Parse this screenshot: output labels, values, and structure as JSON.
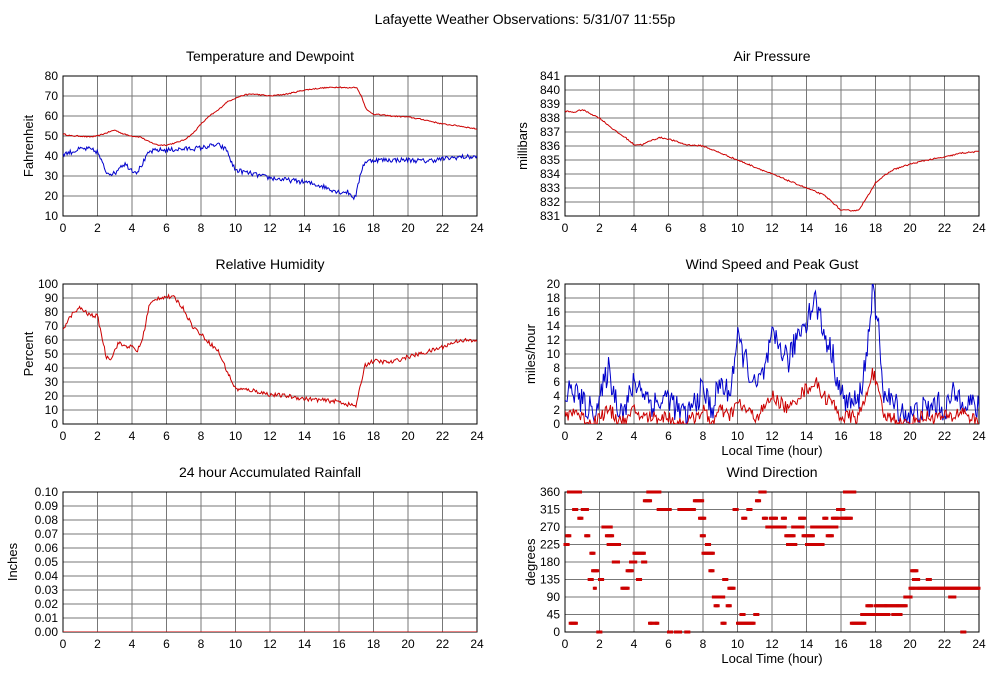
{
  "page_title": "Lafayette Weather Observations: 5/31/07 11:55p",
  "chart_data": [
    {
      "id": "temp",
      "type": "line",
      "title": "Temperature and Dewpoint",
      "ylabel": "Fahrenheit",
      "xlabel": "",
      "ylim": [
        10,
        80
      ],
      "yticks": [
        10,
        20,
        30,
        40,
        50,
        60,
        70,
        80
      ],
      "xlim": [
        0,
        24
      ],
      "xticks": [
        0,
        2,
        4,
        6,
        8,
        10,
        12,
        14,
        16,
        18,
        20,
        22,
        24
      ],
      "grid": true,
      "series": [
        {
          "color": "#cc0000",
          "jitter": 0.3,
          "x": [
            0,
            0.5,
            1,
            1.5,
            2,
            2.5,
            3,
            3.5,
            4,
            4.5,
            5,
            5.5,
            6,
            6.5,
            7,
            7.5,
            8,
            8.5,
            9,
            9.5,
            10,
            10.5,
            11,
            12,
            13,
            14,
            15,
            16,
            16.5,
            17,
            17.3,
            17.6,
            18,
            19,
            20,
            21,
            22,
            23,
            24
          ],
          "y": [
            51,
            50,
            50,
            49.5,
            50,
            51.5,
            53,
            51,
            50,
            49.5,
            47,
            45.5,
            45.5,
            46.5,
            48,
            51,
            56,
            60,
            63,
            67,
            69,
            70.5,
            71,
            70,
            71,
            73,
            74,
            74.5,
            74,
            74.5,
            70,
            63,
            61,
            60,
            59.5,
            58,
            56,
            55,
            53.5
          ]
        },
        {
          "color": "#0000cc",
          "jitter": 1.2,
          "x": [
            0,
            0.5,
            1,
            1.5,
            2,
            2.3,
            2.5,
            3,
            3.3,
            3.6,
            4,
            4.3,
            4.6,
            5,
            5.5,
            6,
            7,
            8,
            8.5,
            9,
            9.5,
            9.8,
            10,
            11,
            12,
            13,
            14,
            15,
            16,
            16.5,
            16.9,
            17,
            17.3,
            17.5,
            18,
            19,
            20,
            21,
            22,
            23,
            24
          ],
          "y": [
            41,
            42,
            43.5,
            43.5,
            42,
            36,
            32,
            31,
            35,
            36,
            33,
            32,
            36,
            42,
            43,
            43,
            43.5,
            44,
            45,
            45.5,
            43,
            36,
            33,
            31,
            29,
            28,
            27,
            25,
            22,
            22,
            19,
            21,
            33,
            37,
            38,
            38,
            38,
            37.5,
            38.5,
            39.5,
            39.5
          ]
        }
      ]
    },
    {
      "id": "pressure",
      "type": "line",
      "title": "Air Pressure",
      "ylabel": "millibars",
      "xlabel": "",
      "ylim": [
        831,
        841
      ],
      "yticks": [
        831,
        832,
        833,
        834,
        835,
        836,
        837,
        838,
        839,
        840,
        841
      ],
      "xlim": [
        0,
        24
      ],
      "xticks": [
        0,
        2,
        4,
        6,
        8,
        10,
        12,
        14,
        16,
        18,
        20,
        22,
        24
      ],
      "grid": true,
      "series": [
        {
          "color": "#cc0000",
          "jitter": 0.05,
          "x": [
            0,
            0.5,
            1,
            1.5,
            2,
            2.5,
            3,
            3.5,
            4,
            4.5,
            5,
            5.5,
            6,
            7,
            8,
            9,
            10,
            11,
            12,
            13,
            14,
            15,
            15.5,
            16,
            17,
            17.5,
            18,
            19,
            20,
            21,
            22,
            23,
            24
          ],
          "y": [
            838.5,
            838.4,
            838.6,
            838.3,
            838.0,
            837.5,
            837.0,
            836.6,
            836.1,
            836.1,
            836.4,
            836.6,
            836.5,
            836.1,
            836.0,
            835.5,
            835.0,
            834.5,
            834.0,
            833.5,
            833.0,
            832.5,
            832.0,
            831.4,
            831.4,
            832.3,
            833.4,
            834.3,
            834.7,
            835.0,
            835.2,
            835.5,
            835.6
          ]
        }
      ]
    },
    {
      "id": "humidity",
      "type": "line",
      "title": "Relative Humidity",
      "ylabel": "Percent",
      "xlabel": "",
      "ylim": [
        0,
        100
      ],
      "yticks": [
        0,
        10,
        20,
        30,
        40,
        50,
        60,
        70,
        80,
        90,
        100
      ],
      "xlim": [
        0,
        24
      ],
      "xticks": [
        0,
        2,
        4,
        6,
        8,
        10,
        12,
        14,
        16,
        18,
        20,
        22,
        24
      ],
      "grid": true,
      "series": [
        {
          "color": "#cc0000",
          "jitter": 1.5,
          "x": [
            0,
            0.5,
            1,
            1.5,
            2,
            2.3,
            2.5,
            2.8,
            3.2,
            3.5,
            4,
            4.3,
            4.6,
            5,
            5.5,
            6,
            6.5,
            7,
            7.5,
            8,
            8.5,
            9,
            9.5,
            10,
            11,
            12,
            13,
            14,
            15,
            16,
            16.5,
            17,
            17.5,
            18,
            19,
            20,
            21,
            22,
            23,
            24
          ],
          "y": [
            68,
            78,
            83,
            78,
            77,
            60,
            48,
            47,
            58,
            56,
            55,
            52,
            60,
            85,
            90,
            91,
            90,
            82,
            70,
            64,
            58,
            52,
            38,
            25,
            24,
            21,
            20,
            18,
            17,
            16,
            14,
            13,
            42,
            45,
            44,
            48,
            51,
            55,
            60,
            59
          ]
        }
      ]
    },
    {
      "id": "wind",
      "type": "line",
      "title": "Wind Speed and Peak Gust",
      "ylabel": "miles/hour",
      "xlabel": "Local Time (hour)",
      "ylim": [
        0,
        20
      ],
      "yticks": [
        0,
        2,
        4,
        6,
        8,
        10,
        12,
        14,
        16,
        18,
        20
      ],
      "xlim": [
        0,
        24
      ],
      "xticks": [
        0,
        2,
        4,
        6,
        8,
        10,
        12,
        14,
        16,
        18,
        20,
        22,
        24
      ],
      "grid": true,
      "series": [
        {
          "color": "#0000cc",
          "jitter": 2.0,
          "x": [
            0,
            0.5,
            1,
            1.5,
            2,
            2.5,
            3,
            3.5,
            4,
            4.5,
            5,
            5.5,
            6,
            6.5,
            7,
            7.5,
            8,
            8.5,
            9,
            9.5,
            10,
            10.5,
            11,
            11.5,
            12,
            12.5,
            13,
            13.5,
            14,
            14.5,
            15,
            15.5,
            16,
            16.5,
            17,
            17.5,
            17.8,
            18.2,
            18.5,
            19,
            19.5,
            20,
            20.5,
            21,
            21.5,
            22,
            22.5,
            23,
            23.5,
            24
          ],
          "y": [
            4,
            5,
            3,
            2,
            3,
            8,
            3,
            2,
            6,
            5,
            3,
            3,
            4,
            2,
            1,
            3,
            5,
            2,
            6,
            4,
            12,
            9,
            5,
            7,
            12,
            11,
            9,
            13,
            15,
            18,
            13,
            10,
            4,
            3,
            3,
            10,
            19,
            13,
            4,
            3,
            2,
            1,
            2,
            2,
            3,
            2,
            4,
            4,
            3,
            2
          ]
        },
        {
          "color": "#cc0000",
          "jitter": 1.0,
          "x": [
            0,
            0.5,
            1,
            1.5,
            2,
            2.5,
            3,
            3.5,
            4,
            4.5,
            5,
            5.5,
            6,
            6.5,
            7,
            7.5,
            8,
            8.5,
            9,
            9.5,
            10,
            10.5,
            11,
            11.5,
            12,
            12.5,
            13,
            13.5,
            14,
            14.5,
            15,
            15.5,
            16,
            16.5,
            17,
            17.5,
            17.8,
            18.2,
            18.5,
            19,
            19.5,
            20,
            20.5,
            21,
            21.5,
            22,
            22.5,
            23,
            23.5,
            24
          ],
          "y": [
            1,
            2,
            1,
            0,
            1,
            2,
            1,
            0,
            2,
            1,
            1,
            1,
            1,
            0,
            0,
            1,
            2,
            0,
            2,
            1,
            3,
            2,
            1,
            2,
            4,
            3,
            2,
            4,
            5,
            6,
            4,
            3,
            1,
            1,
            1,
            4,
            8,
            4,
            1,
            1,
            0,
            0,
            1,
            1,
            1,
            1,
            1,
            2,
            1,
            0
          ]
        }
      ]
    },
    {
      "id": "rain",
      "type": "line",
      "title": "24 hour Accumulated Rainfall",
      "ylabel": "Inches",
      "xlabel": "",
      "ylim": [
        0,
        0.1
      ],
      "yticks": [
        "0.00",
        "0.01",
        "0.02",
        "0.03",
        "0.04",
        "0.05",
        "0.06",
        "0.07",
        "0.08",
        "0.09",
        "0.10"
      ],
      "xlim": [
        0,
        24
      ],
      "xticks": [
        0,
        2,
        4,
        6,
        8,
        10,
        12,
        14,
        16,
        18,
        20,
        22,
        24
      ],
      "grid": true,
      "series": [
        {
          "color": "#cc0000",
          "jitter": 0,
          "x": [
            0,
            24
          ],
          "y": [
            0,
            0
          ]
        }
      ]
    },
    {
      "id": "winddir",
      "type": "scatter",
      "title": "Wind Direction",
      "ylabel": "degrees",
      "xlabel": "Local Time (hour)",
      "ylim": [
        0,
        360
      ],
      "yticks": [
        0,
        45,
        90,
        135,
        180,
        225,
        270,
        315,
        360
      ],
      "xlim": [
        0,
        24
      ],
      "xticks": [
        0,
        2,
        4,
        6,
        8,
        10,
        12,
        14,
        16,
        18,
        20,
        22,
        24
      ],
      "grid": true,
      "color": "#cc0000",
      "segments": [
        [
          0.0,
          0.2,
          225
        ],
        [
          0.1,
          0.3,
          247.5
        ],
        [
          0.2,
          0.6,
          360
        ],
        [
          0.3,
          0.7,
          22.5
        ],
        [
          0.6,
          0.9,
          360
        ],
        [
          0.5,
          0.7,
          315
        ],
        [
          0.8,
          1.0,
          292.5
        ],
        [
          1.0,
          1.3,
          315
        ],
        [
          1.2,
          1.4,
          247.5
        ],
        [
          1.4,
          1.6,
          135
        ],
        [
          1.5,
          1.7,
          202.5
        ],
        [
          1.6,
          1.9,
          157.5
        ],
        [
          1.7,
          1.8,
          112.5
        ],
        [
          1.9,
          2.1,
          0
        ],
        [
          2.0,
          2.2,
          135
        ],
        [
          2.2,
          2.7,
          270
        ],
        [
          2.4,
          2.8,
          247.5
        ],
        [
          2.5,
          3.2,
          225
        ],
        [
          2.8,
          3.1,
          180
        ],
        [
          3.3,
          3.7,
          112.5
        ],
        [
          3.6,
          3.9,
          157.5
        ],
        [
          3.8,
          4.1,
          180
        ],
        [
          4.0,
          4.6,
          202.5
        ],
        [
          4.2,
          4.4,
          135
        ],
        [
          4.5,
          4.7,
          180
        ],
        [
          4.6,
          5.0,
          337.5
        ],
        [
          4.8,
          5.2,
          360
        ],
        [
          4.9,
          5.1,
          22.5
        ],
        [
          5.2,
          5.4,
          22.5
        ],
        [
          5.2,
          5.5,
          360
        ],
        [
          5.4,
          5.9,
          315
        ],
        [
          5.8,
          6.1,
          315
        ],
        [
          6.0,
          6.2,
          0
        ],
        [
          6.4,
          6.7,
          0
        ],
        [
          6.6,
          7.5,
          315
        ],
        [
          7.0,
          7.2,
          0
        ],
        [
          7.5,
          8.0,
          337.5
        ],
        [
          7.8,
          8.1,
          292.5
        ],
        [
          7.9,
          8.1,
          247.5
        ],
        [
          8.0,
          8.6,
          202.5
        ],
        [
          8.2,
          8.4,
          225
        ],
        [
          8.4,
          8.6,
          157.5
        ],
        [
          8.6,
          8.8,
          90
        ],
        [
          8.7,
          8.9,
          67.5
        ],
        [
          8.9,
          9.2,
          90
        ],
        [
          9.1,
          9.3,
          22.5
        ],
        [
          9.2,
          9.4,
          135
        ],
        [
          9.4,
          9.6,
          67.5
        ],
        [
          9.5,
          9.8,
          112.5
        ],
        [
          9.8,
          10.0,
          315
        ],
        [
          10.0,
          11.0,
          22.5
        ],
        [
          10.2,
          10.4,
          45
        ],
        [
          10.3,
          10.5,
          292.5
        ],
        [
          10.6,
          10.8,
          315
        ],
        [
          11.0,
          11.2,
          45
        ],
        [
          11.1,
          11.3,
          337.5
        ],
        [
          11.3,
          11.6,
          360
        ],
        [
          11.5,
          11.7,
          292.5
        ],
        [
          11.7,
          12.4,
          270
        ],
        [
          11.9,
          12.3,
          292.5
        ],
        [
          12.4,
          12.8,
          270
        ],
        [
          12.6,
          12.8,
          292.5
        ],
        [
          12.8,
          13.3,
          247.5
        ],
        [
          12.9,
          13.4,
          225
        ],
        [
          13.2,
          13.8,
          270
        ],
        [
          13.6,
          13.9,
          292.5
        ],
        [
          13.8,
          14.4,
          247.5
        ],
        [
          14.0,
          14.6,
          225
        ],
        [
          14.3,
          14.8,
          270
        ],
        [
          14.6,
          15.0,
          225
        ],
        [
          14.8,
          15.3,
          270
        ],
        [
          15.0,
          15.2,
          292.5
        ],
        [
          15.2,
          15.5,
          247.5
        ],
        [
          15.4,
          15.8,
          270
        ],
        [
          15.5,
          15.9,
          292.5
        ],
        [
          15.8,
          16.2,
          315
        ],
        [
          16.0,
          16.3,
          292.5
        ],
        [
          16.2,
          16.8,
          360
        ],
        [
          16.3,
          16.6,
          292.5
        ],
        [
          16.6,
          17.4,
          22.5
        ],
        [
          17.2,
          17.6,
          45
        ],
        [
          17.5,
          17.8,
          67.5
        ],
        [
          17.6,
          18.2,
          45
        ],
        [
          18.0,
          18.6,
          67.5
        ],
        [
          18.3,
          18.8,
          45
        ],
        [
          18.6,
          19.3,
          67.5
        ],
        [
          19.0,
          19.5,
          45
        ],
        [
          19.3,
          19.8,
          67.5
        ],
        [
          19.7,
          20.1,
          90
        ],
        [
          20.0,
          20.3,
          112.5
        ],
        [
          20.1,
          20.4,
          157.5
        ],
        [
          20.2,
          20.5,
          135
        ],
        [
          20.4,
          24.0,
          112.5
        ],
        [
          21.0,
          21.2,
          135
        ],
        [
          22.3,
          22.6,
          90
        ],
        [
          23.0,
          23.2,
          0
        ]
      ]
    }
  ]
}
